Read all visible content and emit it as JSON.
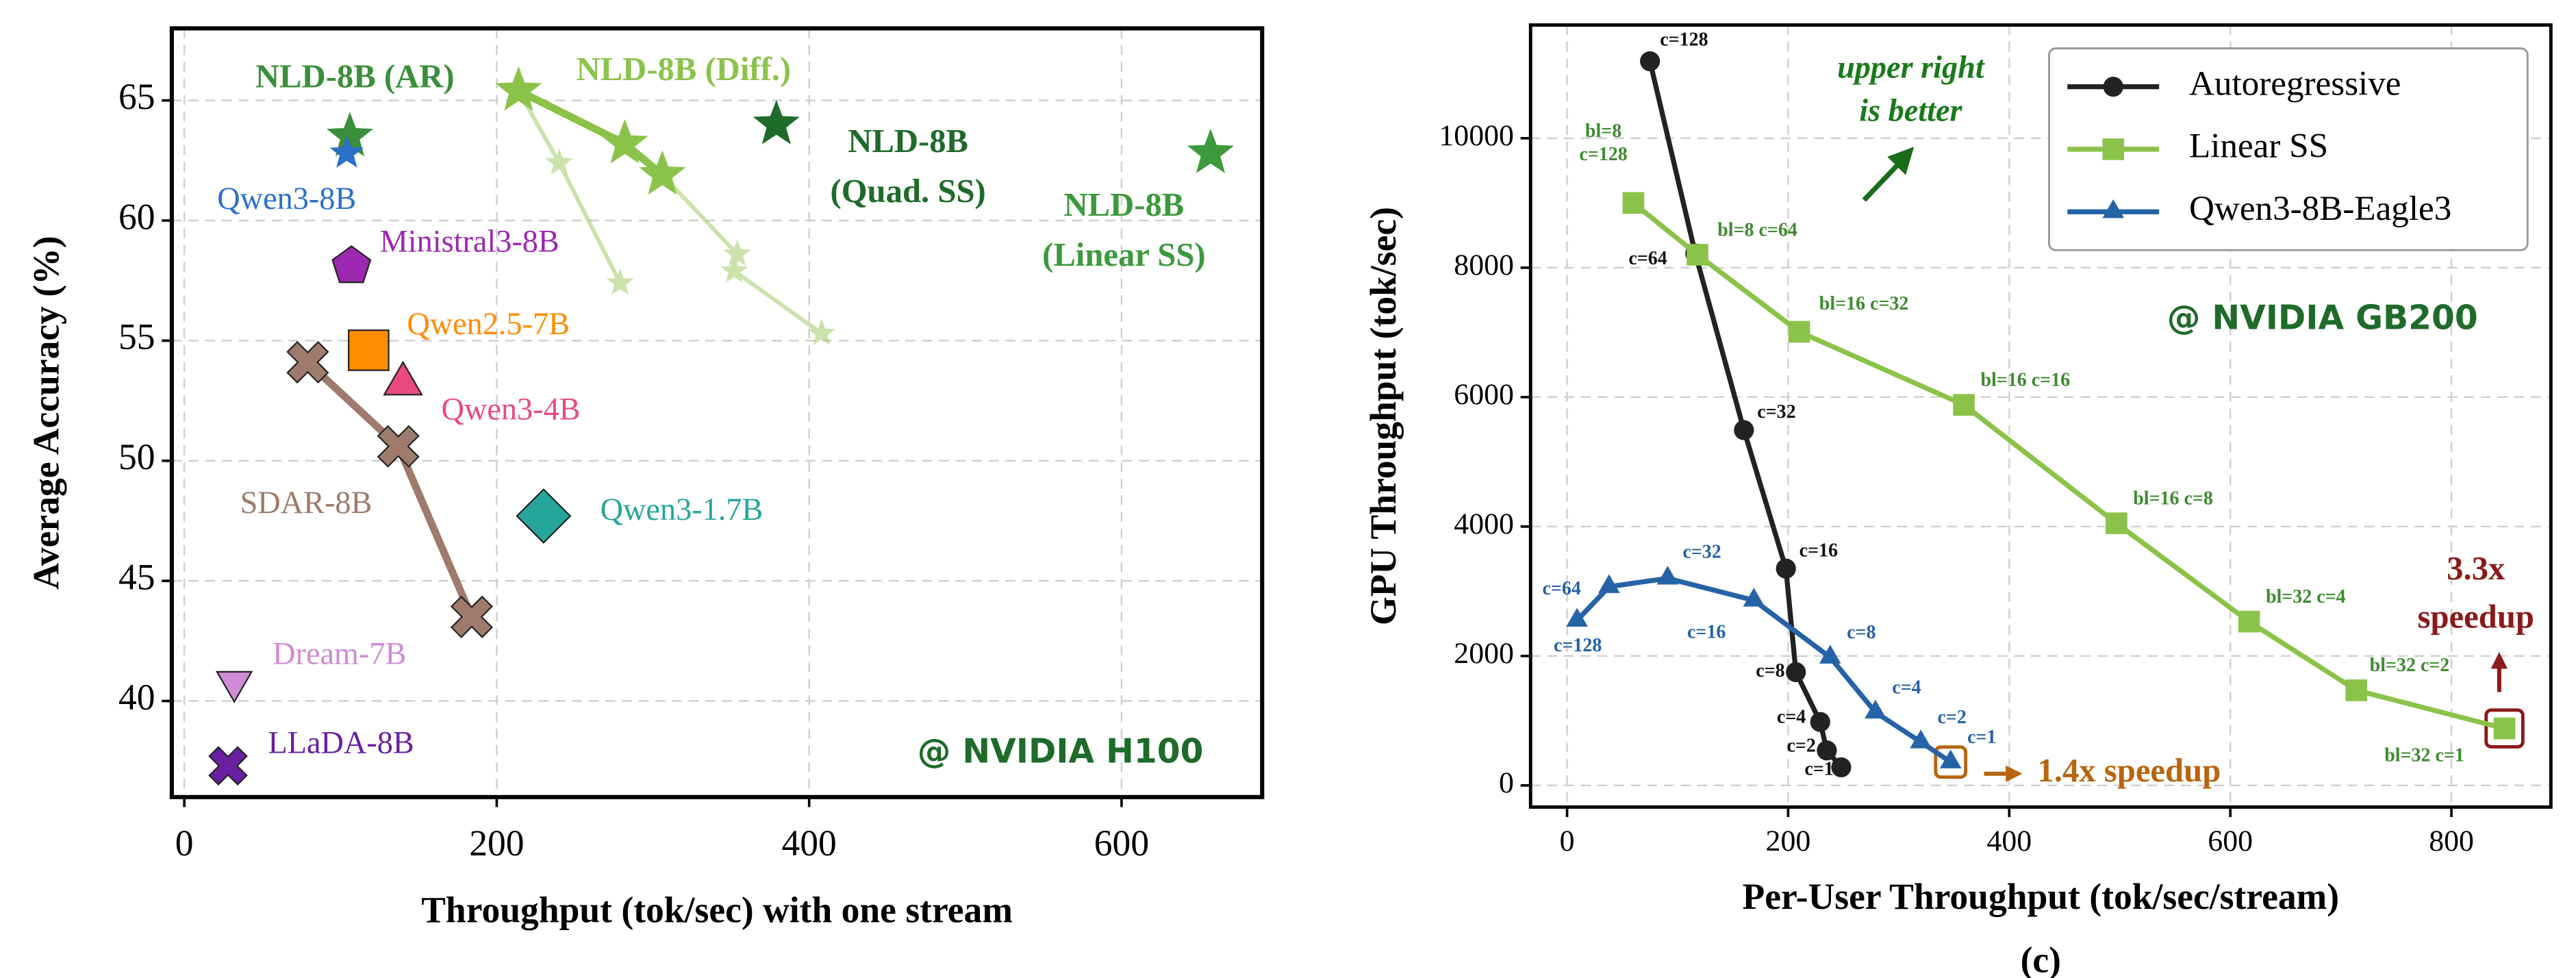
{
  "chart_data": [
    {
      "type": "scatter",
      "xlabel": "Throughput (tok/sec) with one stream",
      "ylabel": "Average Accuracy (%)",
      "xlim": [
        -8,
        690
      ],
      "ylim": [
        36,
        68
      ],
      "xticks": [
        0,
        200,
        400,
        600
      ],
      "yticks": [
        40,
        45,
        50,
        55,
        60,
        65
      ],
      "grid": true,
      "annotation": "@ NVIDIA H100",
      "series": [
        {
          "color": "#8bc34a",
          "marker": "star",
          "alpha": 0.45,
          "x": [
            214,
            240,
            279
          ],
          "values": [
            65.4,
            62.4,
            57.4
          ]
        },
        {
          "color": "#8bc34a",
          "marker": "star",
          "alpha": 0.45,
          "x": [
            306,
            354,
            352,
            408
          ],
          "values": [
            61.9,
            58.6,
            57.9,
            55.3
          ]
        },
        {
          "name": "NLD-8B (Diff.)",
          "color": "#8bc34a",
          "marker": "star",
          "x": [
            214,
            282,
            306
          ],
          "values": [
            65.4,
            63.2,
            61.9
          ]
        },
        {
          "name": "NLD-8B (AR)",
          "color": "#3a8f3a",
          "marker": "star",
          "x": [
            106
          ],
          "values": [
            63.5
          ]
        },
        {
          "name": "Qwen3-8B",
          "color": "#2a6fc9",
          "marker": "star",
          "x": [
            104
          ],
          "values": [
            62.8
          ]
        },
        {
          "name": [
            "NLD-8B",
            "(Quad. SS)"
          ],
          "color": "#1e6b2a",
          "marker": "star",
          "x": [
            379
          ],
          "values": [
            64.0
          ]
        },
        {
          "name": [
            "NLD-8B",
            "(Linear SS)"
          ],
          "color": "#3c9a3c",
          "marker": "star",
          "x": [
            657
          ],
          "values": [
            62.8
          ]
        },
        {
          "name": "Ministral3-8B",
          "color": "#9c27b0",
          "marker": "pentagon",
          "x": [
            107
          ],
          "values": [
            58.1
          ]
        },
        {
          "name": "Qwen2.5-7B",
          "color": "#ff8c00",
          "marker": "square",
          "x": [
            118
          ],
          "values": [
            54.6
          ]
        },
        {
          "name": "Qwen3-4B",
          "color": "#e84a7f",
          "marker": "triangle",
          "x": [
            140
          ],
          "values": [
            53.2
          ]
        },
        {
          "name": "SDAR-8B",
          "color": "#9e7b6c",
          "marker": "x",
          "x": [
            79,
            137,
            184
          ],
          "values": [
            54.1,
            50.6,
            43.5
          ]
        },
        {
          "name": "Qwen3-1.7B",
          "color": "#26a69a",
          "marker": "diamond",
          "x": [
            230
          ],
          "values": [
            47.7
          ]
        },
        {
          "name": "Dream-7B",
          "color": "#d08ad6",
          "marker": "triangle-down",
          "x": [
            32
          ],
          "values": [
            40.8
          ]
        },
        {
          "name": "LLaDA-8B",
          "color": "#6a1fa2",
          "marker": "x",
          "x": [
            28
          ],
          "values": [
            37.3
          ]
        }
      ]
    },
    {
      "type": "line",
      "xlabel": "Per-User Throughput (tok/sec/stream)",
      "ylabel": "GPU Throughput (tok/sec)",
      "caption": "(c)",
      "xlim": [
        -33,
        890
      ],
      "ylim": [
        -335,
        11750
      ],
      "xticks": [
        0,
        200,
        400,
        600,
        800
      ],
      "yticks": [
        0,
        2000,
        4000,
        6000,
        8000,
        10000
      ],
      "grid": true,
      "legend": "upper right",
      "annotations": {
        "direction": [
          "upper right",
          "is better"
        ],
        "platform": "@ NVIDIA GB200",
        "speedup_eagle": "1.4x speedup",
        "speedup_linear": [
          "3.3x",
          "speedup"
        ]
      },
      "series": [
        {
          "name": "Autoregressive",
          "color": "#222222",
          "marker": "circle",
          "x": [
            75,
            116,
            160,
            198,
            207,
            229,
            235,
            248
          ],
          "values": [
            11190,
            8220,
            5490,
            3350,
            1750,
            980,
            540,
            280
          ],
          "labels": [
            "c=128",
            "c=64",
            "c=32",
            "c=16",
            "c=8",
            "c=4",
            "c=2",
            "c=1"
          ]
        },
        {
          "name": "Linear SS",
          "color": "#8bc34a",
          "marker": "square",
          "x": [
            60,
            118,
            210,
            359,
            497,
            617,
            714,
            848
          ],
          "values": [
            9000,
            8200,
            7010,
            5880,
            4050,
            2530,
            1470,
            880
          ],
          "labels": [
            [
              "bl=8",
              "c=128"
            ],
            "bl=8 c=64",
            "bl=16 c=32",
            "bl=16 c=16",
            "bl=16 c=8",
            "bl=32 c=4",
            "bl=32 c=2",
            "bl=32 c=1"
          ]
        },
        {
          "name": "Qwen3-8B-Eagle3",
          "color": "#2563a6",
          "marker": "triangle",
          "x": [
            9,
            38,
            91,
            169,
            238,
            279,
            320,
            347
          ],
          "values": [
            2550,
            3070,
            3200,
            2860,
            1980,
            1130,
            670,
            360
          ],
          "labels": [
            "c=128",
            "c=64",
            "c=32",
            "c=16",
            "c=8",
            "c=4",
            "c=2",
            "c=1"
          ]
        }
      ]
    }
  ]
}
